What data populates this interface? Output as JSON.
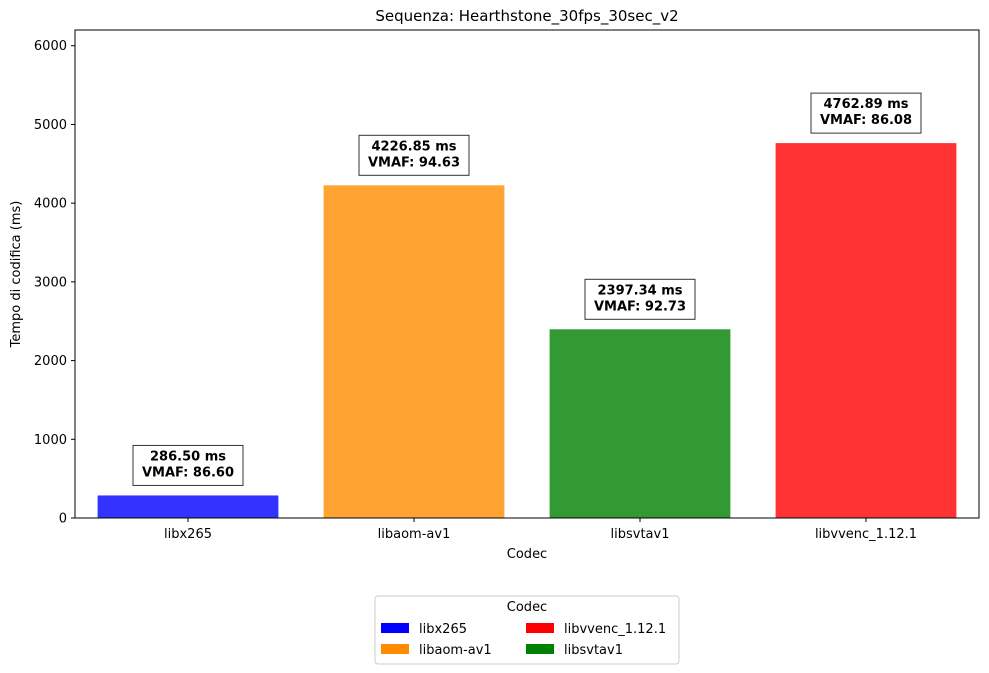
{
  "chart_data": {
    "type": "bar",
    "title": "Sequenza: Hearthstone_30fps_30sec_v2",
    "xlabel": "Codec",
    "ylabel": "Tempo di codifica (ms)",
    "ylim": [
      0,
      6200
    ],
    "yticks": [
      0,
      1000,
      2000,
      3000,
      4000,
      5000,
      6000
    ],
    "categories": [
      "libx265",
      "libaom-av1",
      "libsvtav1",
      "libvvenc_1.12.1"
    ],
    "values": [
      286.5,
      4226.85,
      2397.34,
      4762.89
    ],
    "vmaf": [
      86.6,
      94.63,
      92.73,
      86.08
    ],
    "annotations": [
      [
        "286.50 ms",
        "VMAF: 86.60"
      ],
      [
        "4226.85 ms",
        "VMAF: 94.63"
      ],
      [
        "2397.34 ms",
        "VMAF: 92.73"
      ],
      [
        "4762.89 ms",
        "VMAF: 86.08"
      ]
    ],
    "colors": [
      "#0000ff",
      "#ff8c00",
      "#008000",
      "#ff0000"
    ],
    "bar_opacity": 0.8,
    "grid": false,
    "legend": {
      "title": "Codec",
      "placement": "below-center",
      "columns": 2,
      "entries": [
        {
          "label": "libx265",
          "color": "#0000ff"
        },
        {
          "label": "libaom-av1",
          "color": "#ff8c00"
        },
        {
          "label": "libvvenc_1.12.1",
          "color": "#ff0000"
        },
        {
          "label": "libsvtav1",
          "color": "#008000"
        }
      ]
    }
  }
}
